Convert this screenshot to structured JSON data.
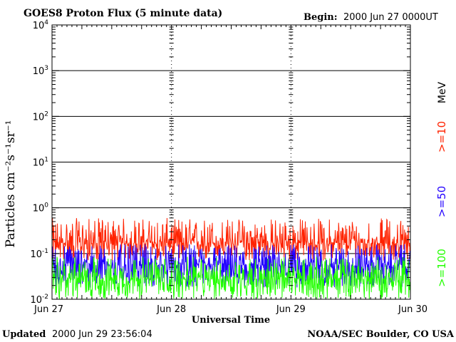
{
  "header": {
    "title": "GOES8 Proton Flux (5 minute data)",
    "begin_label": "Begin:",
    "begin_value": "2000 Jun 27 0000UT"
  },
  "footer": {
    "updated_label": "Updated",
    "updated_value": "2000 Jun 29 23:56:04",
    "credit": "NOAA/SEC Boulder, CO USA"
  },
  "chart_data": {
    "type": "line",
    "title": "GOES8 Proton Flux (5 minute data)",
    "xlabel": "Universal Time",
    "ylabel": "Particles cm⁻²s⁻¹sr⁻¹",
    "yscale": "log",
    "ylim": [
      0.01,
      10000
    ],
    "ytick_base": "10",
    "ytick_exponents": [
      "-2",
      "-1",
      "0",
      "1",
      "2",
      "3",
      "4"
    ],
    "x_day_range": [
      0,
      3
    ],
    "x_ticks": [
      {
        "day": 0,
        "label": "Jun 27"
      },
      {
        "day": 1,
        "label": "Jun 28"
      },
      {
        "day": 2,
        "label": "Jun 29"
      },
      {
        "day": 3,
        "label": "Jun 30"
      }
    ],
    "grid": true,
    "legend_placement": "right",
    "legend_unit": "MeV",
    "series": [
      {
        "name": ">=10",
        "color": "#ff2200",
        "typical": 0.17,
        "spread_low": 0.07,
        "spread_high": 0.6
      },
      {
        "name": ">=50",
        "color": "#2200ff",
        "typical": 0.055,
        "spread_low": 0.018,
        "spread_high": 0.16
      },
      {
        "name": ">=100",
        "color": "#22ff00",
        "typical": 0.028,
        "spread_low": 0.01,
        "spread_high": 0.085
      }
    ]
  }
}
